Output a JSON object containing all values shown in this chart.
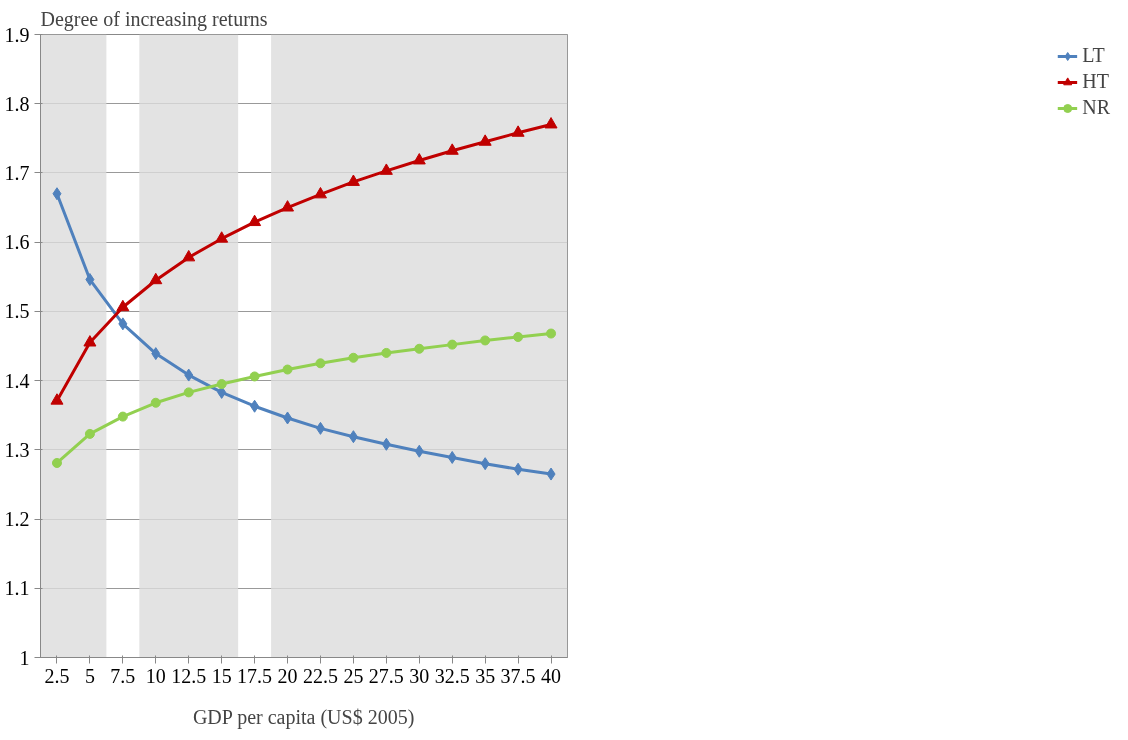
{
  "chart_data": {
    "type": "line",
    "ylabel": "Degree of increasing returns",
    "xlabel": "GDP per capita (US$ 2005)",
    "categories": [
      "2.5",
      "5",
      "7.5",
      "10",
      "12.5",
      "15",
      "17.5",
      "20",
      "22.5",
      "25",
      "27.5",
      "30",
      "32.5",
      "35",
      "37.5",
      "40"
    ],
    "series": [
      {
        "name": "LT",
        "color": "#4f81bd",
        "marker": "diamond",
        "values": [
          1.67,
          1.546,
          1.482,
          1.439,
          1.408,
          1.383,
          1.363,
          1.346,
          1.331,
          1.319,
          1.308,
          1.298,
          1.289,
          1.28,
          1.272,
          1.265
        ]
      },
      {
        "name": "HT",
        "color": "#c00000",
        "marker": "triangle",
        "values": [
          1.371,
          1.455,
          1.506,
          1.545,
          1.578,
          1.605,
          1.629,
          1.65,
          1.669,
          1.687,
          1.703,
          1.718,
          1.732,
          1.745,
          1.758,
          1.77
        ]
      },
      {
        "name": "NR",
        "color": "#92d050",
        "marker": "circle",
        "values": [
          1.281,
          1.323,
          1.348,
          1.368,
          1.383,
          1.395,
          1.406,
          1.416,
          1.425,
          1.433,
          1.44,
          1.446,
          1.452,
          1.458,
          1.463,
          1.468
        ]
      }
    ],
    "ylim": [
      1,
      1.9
    ],
    "yticks": [
      1,
      1.1,
      1.2,
      1.3,
      1.4,
      1.5,
      1.6,
      1.7,
      1.8,
      1.9
    ],
    "bands": [
      {
        "axis": "x",
        "from": "2.5",
        "to": "5",
        "color": "#dcdcdc"
      },
      {
        "axis": "x",
        "from": "10",
        "to": "15",
        "color": "#dcdcdc"
      },
      {
        "axis": "x",
        "from": "20",
        "to": "40",
        "color": "#dcdcdc"
      }
    ],
    "grid": "y",
    "legend": "right",
    "line_style": "solid"
  }
}
